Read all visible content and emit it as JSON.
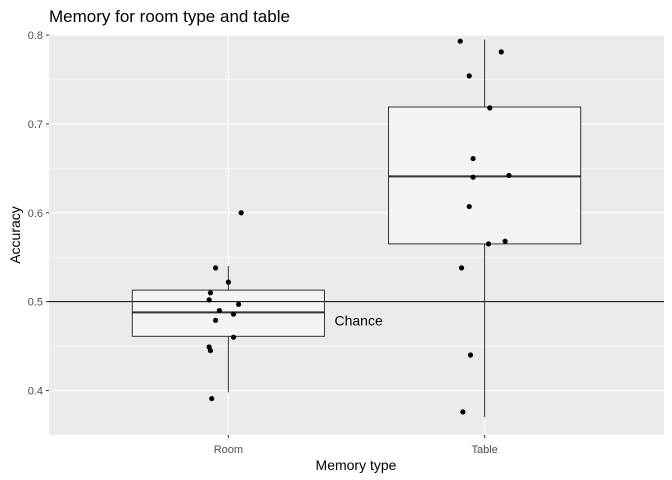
{
  "chart_data": {
    "type": "boxplot",
    "title": "Memory for room type and table",
    "xlabel": "Memory type",
    "ylabel": "Accuracy",
    "categories": [
      "Room",
      "Table"
    ],
    "ylim": [
      0.35,
      0.8
    ],
    "yticks": [
      0.4,
      0.5,
      0.6,
      0.7,
      0.8
    ],
    "ytick_labels": [
      "0.4",
      "0.5",
      "0.6",
      "0.7",
      "0.8"
    ],
    "grid": true,
    "boxes": [
      {
        "category": "Room",
        "lower_whisker": 0.398,
        "q1": 0.461,
        "median": 0.488,
        "q3": 0.513,
        "upper_whisker": 0.54
      },
      {
        "category": "Table",
        "lower_whisker": 0.37,
        "q1": 0.565,
        "median": 0.641,
        "q3": 0.719,
        "upper_whisker": 0.795
      }
    ],
    "points": [
      {
        "category": "Room",
        "offset": 0.05,
        "y": 0.6
      },
      {
        "category": "Room",
        "offset": -0.05,
        "y": 0.538
      },
      {
        "category": "Room",
        "offset": 0.0,
        "y": 0.522
      },
      {
        "category": "Room",
        "offset": -0.07,
        "y": 0.51
      },
      {
        "category": "Room",
        "offset": -0.075,
        "y": 0.502
      },
      {
        "category": "Room",
        "offset": 0.04,
        "y": 0.497
      },
      {
        "category": "Room",
        "offset": -0.035,
        "y": 0.49
      },
      {
        "category": "Room",
        "offset": 0.02,
        "y": 0.486
      },
      {
        "category": "Room",
        "offset": -0.05,
        "y": 0.479
      },
      {
        "category": "Room",
        "offset": 0.02,
        "y": 0.46
      },
      {
        "category": "Room",
        "offset": -0.075,
        "y": 0.449
      },
      {
        "category": "Room",
        "offset": -0.07,
        "y": 0.445
      },
      {
        "category": "Room",
        "offset": -0.065,
        "y": 0.391
      },
      {
        "category": "Table",
        "offset": -0.095,
        "y": 0.793
      },
      {
        "category": "Table",
        "offset": 0.065,
        "y": 0.781
      },
      {
        "category": "Table",
        "offset": -0.06,
        "y": 0.754
      },
      {
        "category": "Table",
        "offset": 0.02,
        "y": 0.718
      },
      {
        "category": "Table",
        "offset": -0.045,
        "y": 0.661
      },
      {
        "category": "Table",
        "offset": 0.095,
        "y": 0.642
      },
      {
        "category": "Table",
        "offset": -0.045,
        "y": 0.64
      },
      {
        "category": "Table",
        "offset": -0.06,
        "y": 0.607
      },
      {
        "category": "Table",
        "offset": 0.08,
        "y": 0.568
      },
      {
        "category": "Table",
        "offset": 0.015,
        "y": 0.565
      },
      {
        "category": "Table",
        "offset": -0.09,
        "y": 0.538
      },
      {
        "category": "Table",
        "offset": -0.055,
        "y": 0.44
      },
      {
        "category": "Table",
        "offset": -0.085,
        "y": 0.376
      }
    ],
    "reference_line": {
      "y": 0.5,
      "label": "Chance"
    },
    "colors": {
      "panel": "#ebebeb",
      "grid": "#ffffff",
      "box_fill": "#f4f4f4",
      "box_stroke": "#333333",
      "point": "#000000",
      "line": "#000000"
    }
  }
}
